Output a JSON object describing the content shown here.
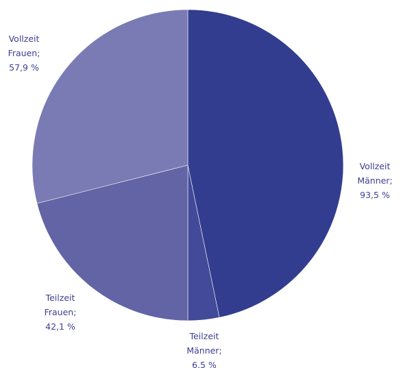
{
  "chart_data": {
    "type": "pie",
    "start": "12 o'clock, clockwise",
    "slices": [
      {
        "lines": [
          "Vollzeit",
          "Männer;",
          "93,5 %"
        ],
        "value": 93.5,
        "color": "#333d8f"
      },
      {
        "lines": [
          "Teilzeit",
          "Männer;",
          "6.5 %"
        ],
        "value": 6.5,
        "color": "#434a99"
      },
      {
        "lines": [
          "Teilzeit",
          "Frauen;",
          "42,1 %"
        ],
        "value": 42.1,
        "color": "#6264a5"
      },
      {
        "lines": [
          "Vollzeit",
          "Frauen;",
          "57,9 %"
        ],
        "value": 57.9,
        "color": "#7a7bb4"
      }
    ]
  }
}
